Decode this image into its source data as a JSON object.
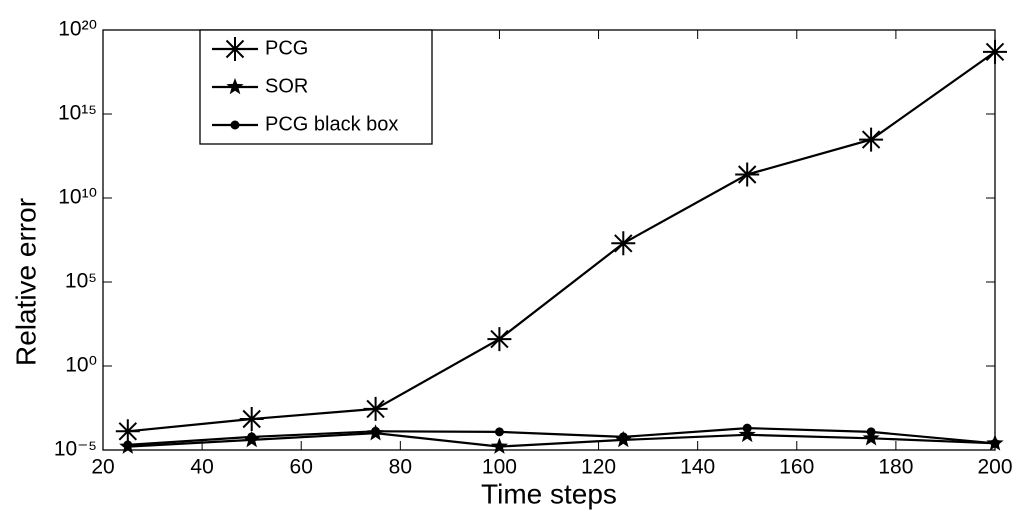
{
  "chart_data": {
    "type": "line",
    "yscale": "log",
    "xlabel": "Time steps",
    "ylabel": "Relative error",
    "x": [
      25,
      50,
      75,
      100,
      125,
      150,
      175,
      200
    ],
    "xlim": [
      20,
      200
    ],
    "xticks": [
      20,
      40,
      60,
      80,
      100,
      120,
      140,
      160,
      180,
      200
    ],
    "ylim": [
      1e-05,
      1e+20
    ],
    "yticks": [
      {
        "value": 1e-05,
        "label": "10⁻⁵"
      },
      {
        "value": 1,
        "label": "10⁰"
      },
      {
        "value": 100000.0,
        "label": "10⁵"
      },
      {
        "value": 10000000000.0,
        "label": "10¹⁰"
      },
      {
        "value": 1000000000000000.0,
        "label": "10¹⁵"
      },
      {
        "value": 1e+20,
        "label": "10²⁰"
      }
    ],
    "legend": "upper left",
    "series": [
      {
        "name": "PCG",
        "color": "#000000",
        "marker": "asterisk",
        "values": [
          0.00013,
          0.0007,
          0.0028,
          40,
          20000000.0,
          250000000000.0,
          30000000000000.0,
          5e+18
        ]
      },
      {
        "name": "SOR",
        "color": "#000000",
        "marker": "star",
        "values": [
          1.6e-05,
          4e-05,
          0.0001,
          1.6e-05,
          4e-05,
          8e-05,
          5e-05,
          2.5e-05
        ]
      },
      {
        "name": "PCG black box",
        "color": "#000000",
        "marker": "dot",
        "values": [
          2e-05,
          6e-05,
          0.00013,
          0.00012,
          6e-05,
          0.0002,
          0.00012,
          2.5e-05
        ]
      }
    ]
  }
}
